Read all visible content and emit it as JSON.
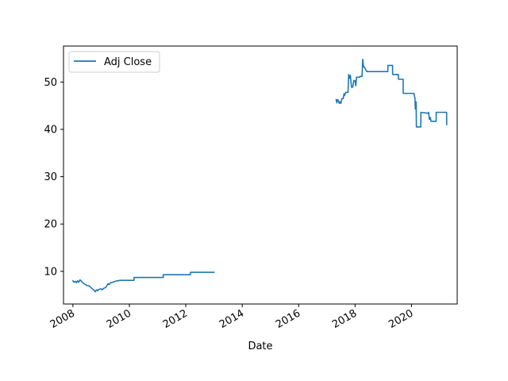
{
  "chart_data": {
    "type": "line",
    "title": "",
    "xlabel": "Date",
    "ylabel": "",
    "xlim": [
      "2007-09-01",
      "2021-08-15"
    ],
    "ylim": [
      3.1,
      57.6
    ],
    "grid": false,
    "legend_position": "top-left",
    "x_ticks": [
      "2008",
      "2010",
      "2012",
      "2014",
      "2016",
      "2018",
      "2020"
    ],
    "y_ticks": [
      10,
      20,
      30,
      40,
      50
    ],
    "series": [
      {
        "name": "Adj Close",
        "color": "#1f77b4",
        "segments": [
          [
            [
              "2008-01-01",
              8.0
            ],
            [
              "2008-01-15",
              7.7
            ],
            [
              "2008-02-01",
              7.9
            ],
            [
              "2008-02-15",
              7.6
            ],
            [
              "2008-03-01",
              8.0
            ],
            [
              "2008-03-15",
              7.7
            ],
            [
              "2008-04-01",
              8.2
            ],
            [
              "2008-04-15",
              8.0
            ],
            [
              "2008-05-01",
              7.7
            ],
            [
              "2008-06-01",
              7.3
            ],
            [
              "2008-07-01",
              7.0
            ],
            [
              "2008-08-01",
              6.9
            ],
            [
              "2008-09-01",
              6.4
            ],
            [
              "2008-10-01",
              6.0
            ],
            [
              "2008-10-15",
              5.7
            ],
            [
              "2008-11-01",
              6.1
            ],
            [
              "2008-11-15",
              5.9
            ],
            [
              "2008-12-01",
              6.2
            ],
            [
              "2009-01-01",
              6.3
            ],
            [
              "2009-01-15",
              6.1
            ],
            [
              "2009-02-01",
              6.4
            ],
            [
              "2009-03-01",
              6.6
            ],
            [
              "2009-04-01",
              7.4
            ],
            [
              "2009-04-15",
              7.2
            ],
            [
              "2009-05-01",
              7.6
            ],
            [
              "2009-06-01",
              7.7
            ],
            [
              "2009-07-01",
              7.9
            ],
            [
              "2009-08-01",
              8.0
            ],
            [
              "2009-09-01",
              8.1
            ],
            [
              "2009-12-31",
              8.1
            ],
            [
              "2010-01-01",
              8.1
            ],
            [
              "2010-03-01",
              8.1
            ],
            [
              "2010-03-02",
              8.7
            ],
            [
              "2011-03-15",
              8.7
            ],
            [
              "2011-03-16",
              9.3
            ],
            [
              "2012-03-01",
              9.3
            ],
            [
              "2012-03-02",
              9.8
            ],
            [
              "2013-01-01",
              9.8
            ]
          ],
          [
            [
              "2017-05-01",
              46.3
            ],
            [
              "2017-05-10",
              45.6
            ],
            [
              "2017-05-20",
              46.3
            ],
            [
              "2017-06-01",
              46.0
            ],
            [
              "2017-06-10",
              45.5
            ],
            [
              "2017-06-20",
              45.8
            ],
            [
              "2017-07-01",
              45.5
            ],
            [
              "2017-07-15",
              46.5
            ],
            [
              "2017-08-01",
              46.5
            ],
            [
              "2017-08-10",
              47.5
            ],
            [
              "2017-08-20",
              47.2
            ],
            [
              "2017-09-01",
              47.8
            ],
            [
              "2017-10-01",
              47.8
            ],
            [
              "2017-10-10",
              51.6
            ],
            [
              "2017-10-20",
              50.8
            ],
            [
              "2017-11-01",
              51.4
            ],
            [
              "2017-11-15",
              48.9
            ],
            [
              "2017-12-01",
              48.9
            ],
            [
              "2017-12-15",
              50.3
            ],
            [
              "2018-01-01",
              50.3
            ],
            [
              "2018-01-10",
              49.2
            ],
            [
              "2018-01-20",
              51.0
            ],
            [
              "2018-02-01",
              51.0
            ],
            [
              "2018-03-01",
              51.0
            ],
            [
              "2018-03-10",
              51.2
            ],
            [
              "2018-04-01",
              51.2
            ],
            [
              "2018-04-10",
              54.8
            ],
            [
              "2018-04-20",
              53.2
            ],
            [
              "2018-05-01",
              53.2
            ],
            [
              "2018-05-15",
              52.7
            ],
            [
              "2018-06-01",
              52.2
            ],
            [
              "2019-03-01",
              52.2
            ],
            [
              "2019-03-02",
              53.5
            ],
            [
              "2019-05-01",
              53.5
            ],
            [
              "2019-05-02",
              51.6
            ],
            [
              "2019-07-15",
              51.6
            ],
            [
              "2019-07-16",
              50.6
            ],
            [
              "2019-09-15",
              50.6
            ],
            [
              "2019-09-16",
              47.6
            ],
            [
              "2020-02-01",
              47.6
            ],
            [
              "2020-02-15",
              46.6
            ],
            [
              "2020-02-20",
              44.3
            ],
            [
              "2020-03-01",
              45.8
            ],
            [
              "2020-03-05",
              40.5
            ],
            [
              "2020-05-01",
              40.5
            ],
            [
              "2020-05-02",
              43.6
            ],
            [
              "2020-08-01",
              43.4
            ],
            [
              "2020-08-10",
              43.6
            ],
            [
              "2020-08-20",
              42.1
            ],
            [
              "2020-09-01",
              42.5
            ],
            [
              "2020-09-10",
              41.7
            ],
            [
              "2020-11-15",
              41.7
            ],
            [
              "2020-11-16",
              43.6
            ],
            [
              "2021-03-31",
              43.6
            ],
            [
              "2021-04-01",
              41.0
            ]
          ]
        ]
      }
    ]
  }
}
